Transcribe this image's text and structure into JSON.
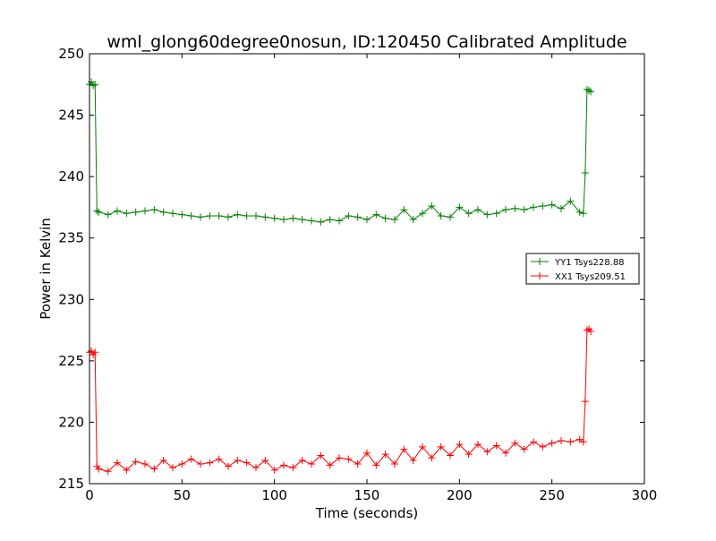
{
  "chart_data": {
    "type": "line",
    "title": "wml_glong60degree0nosun, ID:120450 Calibrated Amplitude",
    "xlabel": "Time (seconds)",
    "ylabel": "Power in Kelvin",
    "xlim": [
      0,
      300
    ],
    "ylim": [
      215,
      250
    ],
    "xticks": [
      0,
      50,
      100,
      150,
      200,
      250,
      300
    ],
    "yticks": [
      215,
      220,
      225,
      230,
      235,
      240,
      245,
      250
    ],
    "grid": false,
    "legend_position": "center-right",
    "series": [
      {
        "name": "YY1 Tsys228.88",
        "color": "#008000",
        "marker": "+",
        "x": [
          0,
          1,
          2,
          3,
          4,
          5,
          10,
          15,
          20,
          25,
          30,
          35,
          40,
          45,
          50,
          55,
          60,
          65,
          70,
          75,
          80,
          85,
          90,
          95,
          100,
          105,
          110,
          115,
          120,
          125,
          130,
          135,
          140,
          145,
          150,
          155,
          160,
          165,
          170,
          175,
          180,
          185,
          190,
          195,
          200,
          205,
          210,
          215,
          220,
          225,
          230,
          235,
          240,
          245,
          250,
          255,
          260,
          265,
          267,
          268,
          269,
          270,
          271
        ],
        "y": [
          247.5,
          247.7,
          247.4,
          247.5,
          237.2,
          237.1,
          236.9,
          237.2,
          237.0,
          237.1,
          237.2,
          237.3,
          237.1,
          237.0,
          236.9,
          236.8,
          236.7,
          236.8,
          236.8,
          236.7,
          236.9,
          236.8,
          236.8,
          236.7,
          236.6,
          236.5,
          236.6,
          236.5,
          236.4,
          236.3,
          236.5,
          236.4,
          236.8,
          236.7,
          236.5,
          236.9,
          236.6,
          236.5,
          237.3,
          236.5,
          237.0,
          237.6,
          236.8,
          236.7,
          237.5,
          237.0,
          237.3,
          236.9,
          237.0,
          237.3,
          237.4,
          237.3,
          237.5,
          237.6,
          237.7,
          237.4,
          238.0,
          237.1,
          237.0,
          240.3,
          247.1,
          247.0,
          246.9
        ]
      },
      {
        "name": "XX1 Tsys209.51",
        "color": "#ff0000",
        "marker": "+",
        "x": [
          0,
          1,
          2,
          3,
          4,
          5,
          10,
          15,
          20,
          25,
          30,
          35,
          40,
          45,
          50,
          55,
          60,
          65,
          70,
          75,
          80,
          85,
          90,
          95,
          100,
          105,
          110,
          115,
          120,
          125,
          130,
          135,
          140,
          145,
          150,
          155,
          160,
          165,
          170,
          175,
          180,
          185,
          190,
          195,
          200,
          205,
          210,
          215,
          220,
          225,
          230,
          235,
          240,
          245,
          250,
          255,
          260,
          265,
          267,
          268,
          269,
          270,
          271
        ],
        "y": [
          225.7,
          225.8,
          225.5,
          225.7,
          216.4,
          216.2,
          216.0,
          216.7,
          216.1,
          216.8,
          216.6,
          216.2,
          216.9,
          216.3,
          216.6,
          217.0,
          216.6,
          216.7,
          217.0,
          216.4,
          216.9,
          216.7,
          216.3,
          216.9,
          216.1,
          216.5,
          216.3,
          216.9,
          216.6,
          217.3,
          216.5,
          217.1,
          217.0,
          216.6,
          217.5,
          216.5,
          217.4,
          216.6,
          217.8,
          216.9,
          218.0,
          217.1,
          218.0,
          217.3,
          218.2,
          217.4,
          218.2,
          217.6,
          218.1,
          217.5,
          218.3,
          217.8,
          218.4,
          218.0,
          218.3,
          218.5,
          218.4,
          218.6,
          218.4,
          221.7,
          227.5,
          227.6,
          227.4
        ]
      }
    ]
  }
}
